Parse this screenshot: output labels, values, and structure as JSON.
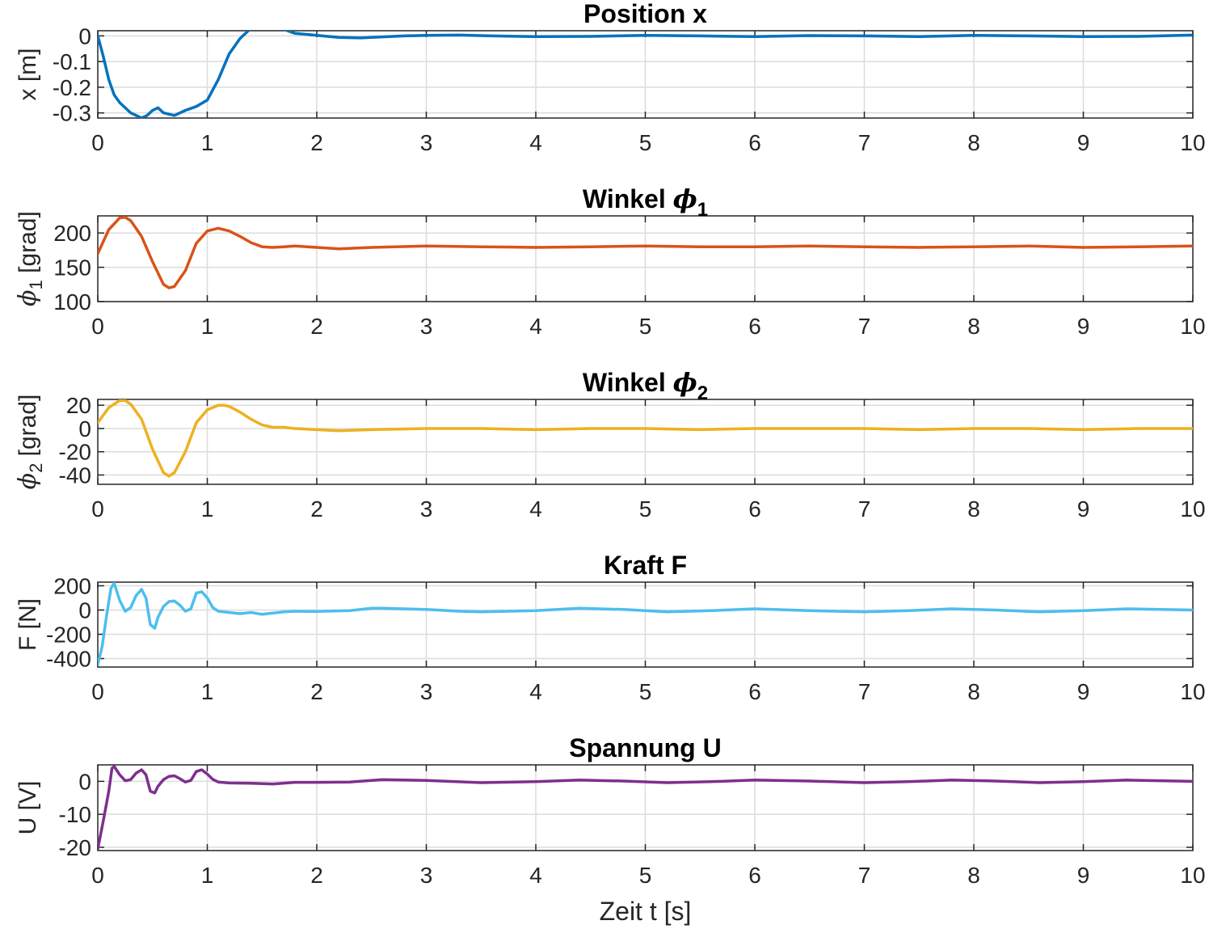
{
  "chart_data": [
    {
      "type": "line",
      "title": "Position x",
      "title_main": "Position x",
      "title_sym": "",
      "title_sub": "",
      "ylabel_parts": [
        "x [m]"
      ],
      "xlabel": "",
      "xlim": [
        0,
        10
      ],
      "ylim": [
        -0.32,
        0.02
      ],
      "xticks": [
        0,
        1,
        2,
        3,
        4,
        5,
        6,
        7,
        8,
        9,
        10
      ],
      "yticks": [
        0,
        -0.1,
        -0.2,
        -0.3
      ],
      "ytick_labels": [
        "0",
        "-0.1",
        "-0.2",
        "-0.3"
      ],
      "grid": true,
      "color": "#0072bd",
      "series": [
        {
          "x": [
            0,
            0.05,
            0.1,
            0.15,
            0.2,
            0.3,
            0.4,
            0.45,
            0.5,
            0.55,
            0.6,
            0.7,
            0.8,
            0.9,
            1.0,
            1.1,
            1.2,
            1.3,
            1.4,
            1.5,
            1.6,
            1.7,
            1.8,
            2.0,
            2.2,
            2.4,
            2.6,
            2.8,
            3.0,
            3.3,
            3.6,
            4.0,
            4.5,
            5.0,
            5.5,
            6.0,
            6.5,
            7.0,
            7.5,
            8.0,
            8.5,
            9.0,
            9.5,
            10.0
          ],
          "y": [
            0,
            -0.08,
            -0.17,
            -0.23,
            -0.26,
            -0.3,
            -0.32,
            -0.31,
            -0.29,
            -0.28,
            -0.3,
            -0.31,
            -0.29,
            -0.275,
            -0.25,
            -0.17,
            -0.07,
            -0.01,
            0.03,
            0.04,
            0.035,
            0.025,
            0.01,
            0.002,
            -0.006,
            -0.008,
            -0.004,
            0.0,
            0.002,
            0.003,
            0.0,
            -0.003,
            -0.002,
            0.002,
            0.0,
            -0.003,
            0.001,
            0.0,
            -0.003,
            0.002,
            0.0,
            -0.003,
            -0.002,
            0.003
          ]
        }
      ]
    },
    {
      "type": "line",
      "title": "Winkel ϕ1",
      "title_main": "Winkel ",
      "title_sym": "ϕ",
      "title_sub": "1",
      "ylabel_parts": [
        "ϕ",
        "1",
        " [grad]"
      ],
      "xlabel": "",
      "xlim": [
        0,
        10
      ],
      "ylim": [
        100,
        225
      ],
      "xticks": [
        0,
        1,
        2,
        3,
        4,
        5,
        6,
        7,
        8,
        9,
        10
      ],
      "yticks": [
        200,
        150,
        100
      ],
      "ytick_labels": [
        "200",
        "150",
        "100"
      ],
      "grid": true,
      "color": "#d95319",
      "series": [
        {
          "x": [
            0,
            0.1,
            0.2,
            0.25,
            0.3,
            0.4,
            0.5,
            0.6,
            0.65,
            0.7,
            0.8,
            0.9,
            1.0,
            1.1,
            1.2,
            1.3,
            1.4,
            1.5,
            1.6,
            1.7,
            1.8,
            2.0,
            2.2,
            2.5,
            3.0,
            3.5,
            4.0,
            4.5,
            5.0,
            5.5,
            6.0,
            6.5,
            7.0,
            7.5,
            8.0,
            8.5,
            9.0,
            9.5,
            10.0
          ],
          "y": [
            170,
            205,
            222,
            223,
            218,
            195,
            158,
            125,
            120,
            122,
            145,
            185,
            203,
            207,
            203,
            195,
            186,
            180,
            179,
            180,
            181,
            179,
            177,
            179,
            181,
            180,
            179,
            180,
            181,
            180,
            180,
            181,
            180,
            179,
            180,
            181,
            179,
            180,
            181
          ]
        }
      ]
    },
    {
      "type": "line",
      "title": "Winkel ϕ2",
      "title_main": "Winkel ",
      "title_sym": "ϕ",
      "title_sub": "2",
      "ylabel_parts": [
        "ϕ",
        "2",
        " [grad]"
      ],
      "xlabel": "",
      "xlim": [
        0,
        10
      ],
      "ylim": [
        -48,
        25
      ],
      "xticks": [
        0,
        1,
        2,
        3,
        4,
        5,
        6,
        7,
        8,
        9,
        10
      ],
      "yticks": [
        20,
        0,
        -20,
        -40
      ],
      "ytick_labels": [
        "20",
        "0",
        "-20",
        "-40"
      ],
      "grid": true,
      "color": "#edb120",
      "series": [
        {
          "x": [
            0,
            0.1,
            0.2,
            0.25,
            0.3,
            0.4,
            0.5,
            0.6,
            0.65,
            0.7,
            0.8,
            0.9,
            1.0,
            1.1,
            1.15,
            1.2,
            1.3,
            1.4,
            1.5,
            1.6,
            1.7,
            1.8,
            2.0,
            2.2,
            2.5,
            3.0,
            3.5,
            4.0,
            4.5,
            5.0,
            5.5,
            6.0,
            6.5,
            7.0,
            7.5,
            8.0,
            8.5,
            9.0,
            9.5,
            10.0
          ],
          "y": [
            5,
            18,
            24,
            24,
            21,
            8,
            -18,
            -38,
            -41,
            -38,
            -20,
            5,
            16,
            20,
            20,
            19,
            14,
            8,
            3,
            1,
            1,
            0,
            -1,
            -2,
            -1,
            0,
            0,
            -1,
            0,
            0,
            -1,
            0,
            0,
            0,
            -1,
            0,
            0,
            -1,
            0,
            0
          ]
        }
      ]
    },
    {
      "type": "line",
      "title": "Kraft F",
      "title_main": "Kraft F",
      "title_sym": "",
      "title_sub": "",
      "ylabel_parts": [
        "F [N]"
      ],
      "xlabel": "",
      "xlim": [
        0,
        10
      ],
      "ylim": [
        -470,
        230
      ],
      "xticks": [
        0,
        1,
        2,
        3,
        4,
        5,
        6,
        7,
        8,
        9,
        10
      ],
      "yticks": [
        200,
        0,
        -200,
        -400
      ],
      "ytick_labels": [
        "200",
        "0",
        "-200",
        "-400"
      ],
      "grid": true,
      "color": "#4dbeee",
      "series": [
        {
          "x": [
            0,
            0.04,
            0.08,
            0.12,
            0.15,
            0.2,
            0.25,
            0.3,
            0.35,
            0.4,
            0.44,
            0.48,
            0.52,
            0.55,
            0.6,
            0.65,
            0.7,
            0.75,
            0.8,
            0.85,
            0.9,
            0.95,
            1.0,
            1.05,
            1.1,
            1.2,
            1.3,
            1.4,
            1.5,
            1.6,
            1.7,
            1.8,
            2.0,
            2.3,
            2.5,
            2.6,
            3.0,
            3.3,
            3.5,
            4.0,
            4.4,
            4.8,
            5.2,
            5.6,
            6.0,
            6.5,
            7.0,
            7.4,
            7.8,
            8.2,
            8.6,
            9.0,
            9.4,
            9.7,
            10.0
          ],
          "y": [
            -450,
            -300,
            -50,
            180,
            220,
            80,
            -10,
            20,
            120,
            170,
            100,
            -120,
            -150,
            -60,
            30,
            70,
            75,
            40,
            -10,
            10,
            140,
            150,
            100,
            20,
            -10,
            -20,
            -30,
            -20,
            -35,
            -25,
            -15,
            -10,
            -12,
            -5,
            15,
            15,
            5,
            -10,
            -15,
            -5,
            15,
            5,
            -15,
            -5,
            10,
            -5,
            -15,
            -5,
            10,
            0,
            -15,
            -5,
            10,
            5,
            0
          ]
        }
      ]
    },
    {
      "type": "line",
      "title": "Spannung U",
      "title_main": "Spannung U",
      "title_sym": "",
      "title_sub": "",
      "ylabel_parts": [
        "U [V]"
      ],
      "xlabel": "Zeit t [s]",
      "xlim": [
        0,
        10
      ],
      "ylim": [
        -21,
        5
      ],
      "xticks": [
        0,
        1,
        2,
        3,
        4,
        5,
        6,
        7,
        8,
        9,
        10
      ],
      "yticks": [
        0,
        -10,
        -20
      ],
      "ytick_labels": [
        "0",
        "-10",
        "-20"
      ],
      "grid": true,
      "color": "#7e2f8e",
      "series": [
        {
          "x": [
            0,
            0.05,
            0.1,
            0.13,
            0.15,
            0.2,
            0.25,
            0.3,
            0.35,
            0.4,
            0.44,
            0.48,
            0.52,
            0.55,
            0.6,
            0.65,
            0.7,
            0.75,
            0.8,
            0.85,
            0.9,
            0.95,
            1.0,
            1.05,
            1.1,
            1.2,
            1.4,
            1.6,
            1.8,
            2.0,
            2.3,
            2.6,
            3.0,
            3.5,
            4.0,
            4.4,
            4.8,
            5.2,
            5.6,
            6.0,
            6.5,
            7.0,
            7.4,
            7.8,
            8.2,
            8.6,
            9.0,
            9.4,
            9.7,
            10.0
          ],
          "y": [
            -20.5,
            -12,
            -3,
            4,
            4.5,
            2,
            0.2,
            0.5,
            2.5,
            3.5,
            2,
            -3,
            -3.5,
            -1.5,
            0.5,
            1.5,
            1.7,
            0.8,
            -0.2,
            0.3,
            3,
            3.5,
            2.2,
            0.6,
            -0.2,
            -0.5,
            -0.6,
            -0.8,
            -0.3,
            -0.3,
            -0.2,
            0.5,
            0.3,
            -0.4,
            -0.1,
            0.4,
            0.1,
            -0.4,
            -0.1,
            0.4,
            0.1,
            -0.4,
            -0.1,
            0.4,
            0.1,
            -0.4,
            -0.1,
            0.4,
            0.2,
            0
          ]
        }
      ]
    }
  ]
}
